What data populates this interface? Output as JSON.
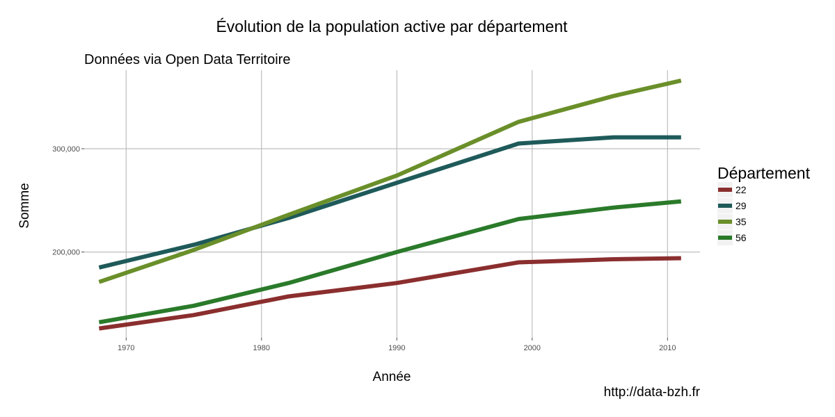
{
  "chart_data": {
    "type": "line",
    "title": "Évolution de la population active par département",
    "subtitle": "Données via Open Data Territoire",
    "xlabel": "Année",
    "ylabel": "Somme",
    "xlim": [
      1966.9,
      2012.4
    ],
    "ylim": [
      117000,
      376000
    ],
    "x_ticks": [
      1970,
      1980,
      1990,
      2000,
      2010
    ],
    "x_tick_labels": [
      "1970",
      "1980",
      "1990",
      "2000",
      "2010"
    ],
    "y_ticks": [
      200000,
      300000
    ],
    "y_tick_labels": [
      "200,000",
      "300,000"
    ],
    "grid": true,
    "legend": {
      "title": "Département",
      "position": "right"
    },
    "x": [
      1968,
      1975,
      1982,
      1990,
      1999,
      2006,
      2011
    ],
    "series": [
      {
        "name": "22",
        "color": "#8b2e2e",
        "values": [
          126000,
          139000,
          157000,
          170000,
          190000,
          193000,
          194000
        ]
      },
      {
        "name": "29",
        "color": "#1f5a5a",
        "values": [
          185000,
          207000,
          233000,
          267000,
          305000,
          311000,
          311000
        ]
      },
      {
        "name": "35",
        "color": "#6a8f2a",
        "values": [
          171000,
          202000,
          236000,
          274000,
          326000,
          351000,
          366000
        ]
      },
      {
        "name": "56",
        "color": "#2a7a2a",
        "values": [
          132000,
          148000,
          170000,
          200000,
          232000,
          243000,
          249000
        ]
      }
    ]
  },
  "source_label": "http://data-bzh.fr"
}
